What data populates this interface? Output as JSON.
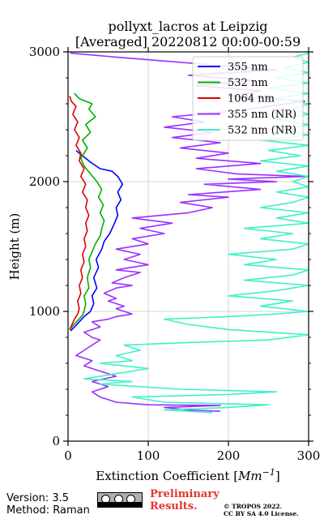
{
  "chart_data": {
    "type": "line",
    "title_line1": "pollyxt_lacros at Leipzig",
    "title_line2": "[Averaged] 20220812 00:00-00:59",
    "xlabel": "Extinction Coefficient [",
    "xlabel_unit": "Mm",
    "xlabel_exp": "−1",
    "xlabel_close": "]",
    "ylabel": "Height (m)",
    "xlim": [
      0,
      300
    ],
    "ylim": [
      0,
      3000
    ],
    "xticks": [
      0,
      100,
      200,
      300
    ],
    "yticks": [
      0,
      1000,
      2000,
      3000
    ],
    "grid": true,
    "legend_position": "top-right",
    "series": [
      {
        "name": "355 nm",
        "color": "#0000ff",
        "points": [
          [
            3,
            850
          ],
          [
            8,
            880
          ],
          [
            14,
            920
          ],
          [
            20,
            960
          ],
          [
            28,
            1000
          ],
          [
            32,
            1060
          ],
          [
            30,
            1120
          ],
          [
            36,
            1180
          ],
          [
            32,
            1260
          ],
          [
            38,
            1340
          ],
          [
            35,
            1400
          ],
          [
            42,
            1480
          ],
          [
            45,
            1540
          ],
          [
            52,
            1600
          ],
          [
            58,
            1680
          ],
          [
            62,
            1740
          ],
          [
            60,
            1800
          ],
          [
            66,
            1860
          ],
          [
            62,
            1920
          ],
          [
            68,
            1980
          ],
          [
            62,
            2040
          ],
          [
            55,
            2080
          ],
          [
            40,
            2100
          ],
          [
            28,
            2150
          ],
          [
            18,
            2200
          ],
          [
            10,
            2240
          ]
        ]
      },
      {
        "name": "532 nm",
        "color": "#00b000",
        "points": [
          [
            2,
            860
          ],
          [
            6,
            890
          ],
          [
            12,
            930
          ],
          [
            18,
            970
          ],
          [
            20,
            1000
          ],
          [
            22,
            1060
          ],
          [
            20,
            1120
          ],
          [
            26,
            1180
          ],
          [
            24,
            1260
          ],
          [
            28,
            1340
          ],
          [
            26,
            1400
          ],
          [
            30,
            1460
          ],
          [
            34,
            1520
          ],
          [
            40,
            1580
          ],
          [
            42,
            1640
          ],
          [
            45,
            1700
          ],
          [
            40,
            1760
          ],
          [
            44,
            1820
          ],
          [
            38,
            1880
          ],
          [
            42,
            1940
          ],
          [
            36,
            2000
          ],
          [
            28,
            2060
          ],
          [
            20,
            2120
          ],
          [
            16,
            2180
          ],
          [
            24,
            2260
          ],
          [
            18,
            2320
          ],
          [
            28,
            2380
          ],
          [
            22,
            2440
          ],
          [
            34,
            2500
          ],
          [
            26,
            2560
          ],
          [
            30,
            2600
          ],
          [
            14,
            2640
          ],
          [
            8,
            2680
          ]
        ]
      },
      {
        "name": "1064 nm",
        "color": "#e00000",
        "points": [
          [
            2,
            860
          ],
          [
            5,
            900
          ],
          [
            8,
            940
          ],
          [
            12,
            980
          ],
          [
            14,
            1020
          ],
          [
            12,
            1080
          ],
          [
            16,
            1140
          ],
          [
            14,
            1200
          ],
          [
            18,
            1260
          ],
          [
            16,
            1320
          ],
          [
            20,
            1380
          ],
          [
            18,
            1440
          ],
          [
            22,
            1500
          ],
          [
            20,
            1560
          ],
          [
            24,
            1620
          ],
          [
            22,
            1680
          ],
          [
            26,
            1740
          ],
          [
            22,
            1800
          ],
          [
            24,
            1860
          ],
          [
            18,
            1920
          ],
          [
            22,
            1980
          ],
          [
            16,
            2040
          ],
          [
            20,
            2100
          ],
          [
            14,
            2160
          ],
          [
            16,
            2220
          ],
          [
            10,
            2280
          ],
          [
            14,
            2340
          ],
          [
            8,
            2400
          ],
          [
            12,
            2460
          ],
          [
            6,
            2520
          ],
          [
            10,
            2580
          ],
          [
            4,
            2620
          ],
          [
            2,
            2660
          ]
        ]
      },
      {
        "name": "355 nm (NR)",
        "color": "#9b30ff",
        "points": [
          [
            190,
            230
          ],
          [
            150,
            240
          ],
          [
            120,
            260
          ],
          [
            190,
            275
          ],
          [
            100,
            280
          ],
          [
            60,
            300
          ],
          [
            40,
            340
          ],
          [
            30,
            380
          ],
          [
            50,
            420
          ],
          [
            30,
            460
          ],
          [
            60,
            500
          ],
          [
            40,
            540
          ],
          [
            20,
            580
          ],
          [
            30,
            620
          ],
          [
            10,
            660
          ],
          [
            20,
            700
          ],
          [
            30,
            740
          ],
          [
            40,
            780
          ],
          [
            30,
            800
          ],
          [
            20,
            840
          ],
          [
            40,
            880
          ],
          [
            30,
            920
          ],
          [
            50,
            940
          ],
          [
            60,
            960
          ],
          [
            80,
            980
          ],
          [
            70,
            1000
          ],
          [
            60,
            1020
          ],
          [
            70,
            1040
          ],
          [
            60,
            1060
          ],
          [
            50,
            1080
          ],
          [
            60,
            1100
          ],
          [
            45,
            1140
          ],
          [
            60,
            1180
          ],
          [
            80,
            1200
          ],
          [
            55,
            1220
          ],
          [
            70,
            1260
          ],
          [
            90,
            1300
          ],
          [
            60,
            1320
          ],
          [
            80,
            1340
          ],
          [
            100,
            1360
          ],
          [
            70,
            1400
          ],
          [
            90,
            1440
          ],
          [
            60,
            1480
          ],
          [
            100,
            1520
          ],
          [
            80,
            1560
          ],
          [
            120,
            1600
          ],
          [
            90,
            1640
          ],
          [
            130,
            1680
          ],
          [
            80,
            1720
          ],
          [
            150,
            1760
          ],
          [
            180,
            1800
          ],
          [
            140,
            1840
          ],
          [
            200,
            1880
          ],
          [
            150,
            1900
          ],
          [
            240,
            1940
          ],
          [
            170,
            1980
          ],
          [
            260,
            2000
          ],
          [
            200,
            2020
          ],
          [
            295,
            2040
          ],
          [
            210,
            2060
          ],
          [
            160,
            2100
          ],
          [
            240,
            2140
          ],
          [
            160,
            2180
          ],
          [
            200,
            2220
          ],
          [
            140,
            2260
          ],
          [
            190,
            2300
          ],
          [
            130,
            2340
          ],
          [
            180,
            2380
          ],
          [
            120,
            2420
          ],
          [
            170,
            2460
          ],
          [
            130,
            2500
          ],
          [
            200,
            2540
          ],
          [
            250,
            2580
          ],
          [
            295,
            2620
          ],
          [
            200,
            2660
          ],
          [
            240,
            2700
          ],
          [
            160,
            2740
          ],
          [
            230,
            2780
          ],
          [
            150,
            2820
          ],
          [
            260,
            2860
          ],
          [
            180,
            2900
          ],
          [
            60,
            2960
          ],
          [
            3,
            2990
          ]
        ]
      },
      {
        "name": "532 nm (NR)",
        "color": "#40f0c8",
        "points": [
          [
            180,
            220
          ],
          [
            120,
            240
          ],
          [
            200,
            260
          ],
          [
            250,
            280
          ],
          [
            120,
            300
          ],
          [
            80,
            340
          ],
          [
            200,
            360
          ],
          [
            260,
            380
          ],
          [
            140,
            400
          ],
          [
            40,
            440
          ],
          [
            80,
            460
          ],
          [
            20,
            480
          ],
          [
            60,
            520
          ],
          [
            100,
            560
          ],
          [
            40,
            600
          ],
          [
            80,
            620
          ],
          [
            60,
            660
          ],
          [
            90,
            700
          ],
          [
            70,
            740
          ],
          [
            150,
            760
          ],
          [
            250,
            780
          ],
          [
            300,
            820
          ],
          [
            200,
            860
          ],
          [
            150,
            900
          ],
          [
            120,
            940
          ],
          [
            200,
            960
          ],
          [
            260,
            980
          ],
          [
            300,
            1000
          ],
          [
            240,
            1040
          ],
          [
            280,
            1080
          ],
          [
            200,
            1120
          ],
          [
            260,
            1160
          ],
          [
            300,
            1200
          ],
          [
            220,
            1240
          ],
          [
            280,
            1280
          ],
          [
            300,
            1320
          ],
          [
            220,
            1360
          ],
          [
            260,
            1400
          ],
          [
            200,
            1440
          ],
          [
            280,
            1480
          ],
          [
            300,
            1520
          ],
          [
            240,
            1560
          ],
          [
            280,
            1600
          ],
          [
            220,
            1640
          ],
          [
            300,
            1680
          ],
          [
            260,
            1720
          ],
          [
            300,
            1760
          ],
          [
            240,
            1800
          ],
          [
            280,
            1840
          ],
          [
            300,
            1880
          ],
          [
            260,
            1920
          ],
          [
            300,
            1960
          ],
          [
            280,
            2000
          ],
          [
            300,
            2040
          ],
          [
            260,
            2080
          ],
          [
            300,
            2120
          ],
          [
            240,
            2160
          ],
          [
            290,
            2200
          ],
          [
            250,
            2240
          ],
          [
            300,
            2280
          ],
          [
            240,
            2320
          ],
          [
            300,
            2360
          ],
          [
            270,
            2400
          ],
          [
            300,
            2440
          ],
          [
            260,
            2480
          ],
          [
            300,
            2520
          ],
          [
            280,
            2560
          ],
          [
            300,
            2600
          ],
          [
            260,
            2640
          ],
          [
            300,
            2680
          ],
          [
            250,
            2720
          ],
          [
            300,
            2760
          ],
          [
            260,
            2800
          ],
          [
            300,
            2840
          ],
          [
            270,
            2880
          ],
          [
            300,
            2920
          ],
          [
            280,
            2960
          ],
          [
            300,
            2990
          ]
        ]
      }
    ]
  },
  "footer": {
    "version": "Version: 3.5",
    "method": "Method: Raman",
    "preliminary_line1": "Preliminary",
    "preliminary_line2": "Results.",
    "copyright_line1": "© TROPOS 2022.",
    "copyright_line2": "CC BY SA 4.0 License."
  }
}
